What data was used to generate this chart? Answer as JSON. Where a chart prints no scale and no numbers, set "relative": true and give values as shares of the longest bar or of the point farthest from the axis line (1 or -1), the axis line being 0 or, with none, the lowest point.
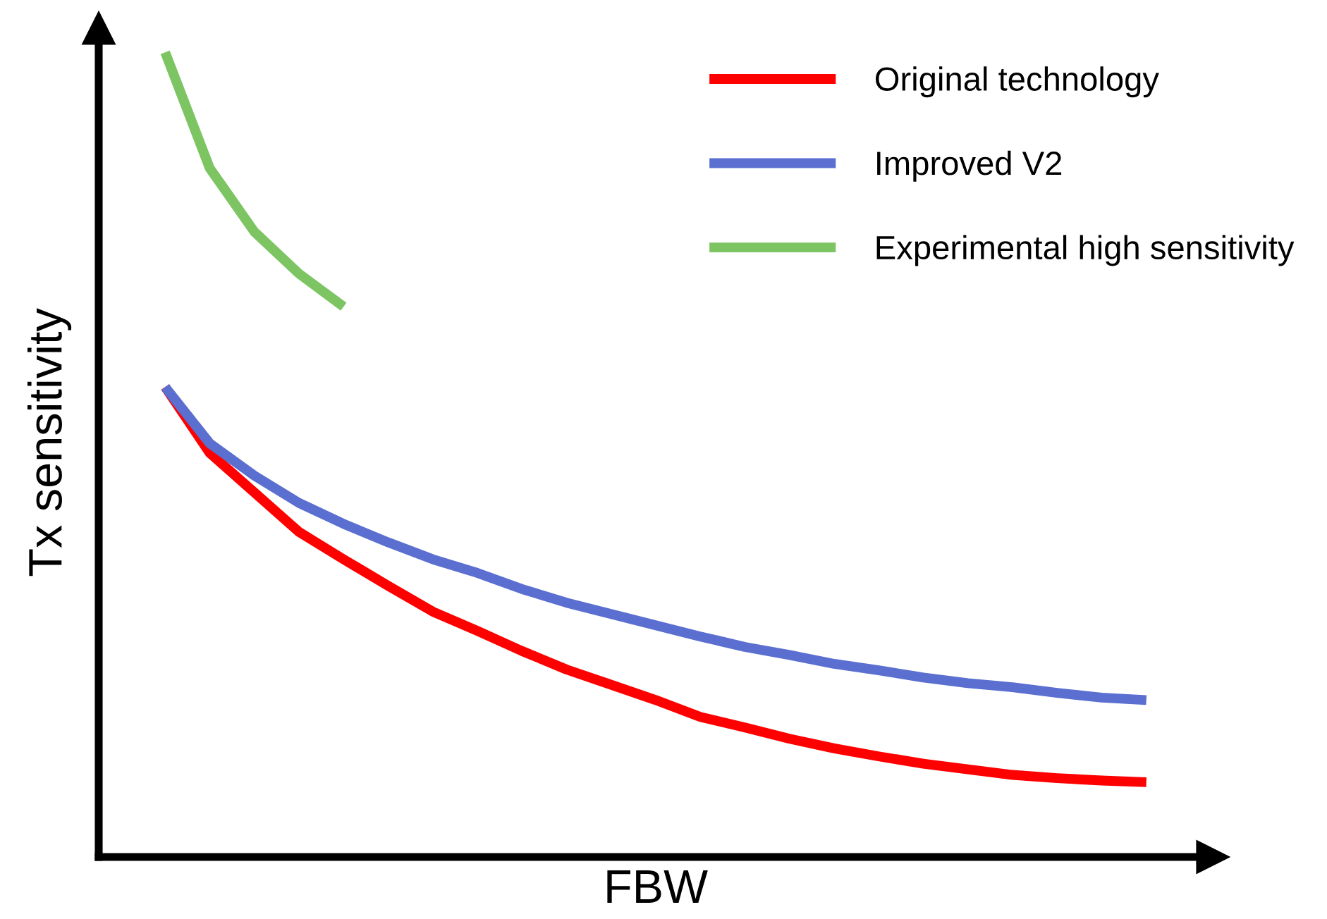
{
  "chart_data": {
    "type": "line",
    "xlabel": "FBW",
    "ylabel": "Tx sensitivity",
    "relative": true,
    "legend": "top right",
    "tick_labels": false,
    "marker": "none",
    "categories": [
      null,
      null,
      null,
      null,
      null,
      null,
      null,
      null,
      null,
      null,
      null,
      null,
      null,
      null,
      null,
      null,
      null,
      null,
      null,
      null,
      null,
      null,
      null
    ],
    "series": [
      {
        "name": "Original technology",
        "color": "#ff0000",
        "values": [
          0.584,
          0.502,
          0.453,
          0.404,
          0.37,
          0.337,
          0.305,
          0.281,
          0.256,
          0.233,
          0.214,
          0.195,
          0.174,
          0.161,
          0.147,
          0.135,
          0.125,
          0.116,
          0.109,
          0.102,
          0.098,
          0.095,
          0.093
        ]
      },
      {
        "name": "Improved V2",
        "color": "#5a6fd0",
        "values": [
          0.584,
          0.514,
          0.474,
          0.44,
          0.414,
          0.391,
          0.37,
          0.353,
          0.333,
          0.316,
          0.302,
          0.288,
          0.274,
          0.261,
          0.251,
          0.24,
          0.232,
          0.223,
          0.216,
          0.211,
          0.204,
          0.198,
          0.195
        ]
      },
      {
        "name": "Experimental high sensitivity",
        "color": "#7dc462",
        "values": [
          1.0,
          0.856,
          0.777,
          0.725,
          0.684,
          null,
          null,
          null,
          null,
          null,
          null,
          null,
          null,
          null,
          null,
          null,
          null,
          null,
          null,
          null,
          null,
          null,
          null
        ]
      }
    ]
  }
}
